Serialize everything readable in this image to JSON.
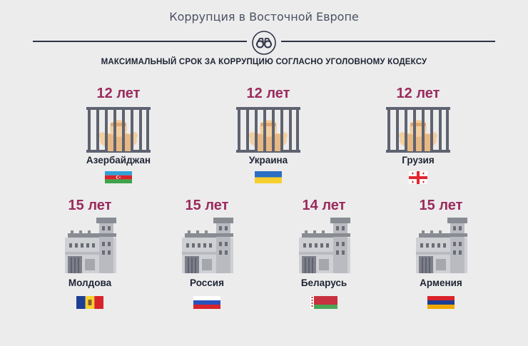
{
  "header": {
    "title": "Коррупция в Восточной Европе",
    "icon": "binoculars-icon"
  },
  "subtitle": "МАКСИМАЛЬНЫЙ СРОК ЗА КОРРУПЦИЮ СОГЛАСНО УГОЛОВНОМУ КОДЕКСУ",
  "row1": [
    {
      "years": "12 лет",
      "country": "Азербайджан",
      "image": "prisoner-behind-bars-icon",
      "flag": "azerbaijan-flag"
    },
    {
      "years": "12 лет",
      "country": "Украина",
      "image": "prisoner-behind-bars-icon",
      "flag": "ukraine-flag"
    },
    {
      "years": "12 лет",
      "country": "Грузия",
      "image": "prisoner-behind-bars-icon",
      "flag": "georgia-flag"
    }
  ],
  "row2": [
    {
      "years": "15 лет",
      "country": "Молдова",
      "image": "prison-building-icon",
      "flag": "moldova-flag"
    },
    {
      "years": "15 лет",
      "country": "Россия",
      "image": "prison-building-icon",
      "flag": "russia-flag"
    },
    {
      "years": "14 лет",
      "country": "Беларусь",
      "image": "prison-building-icon",
      "flag": "belarus-flag"
    },
    {
      "years": "15 лет",
      "country": "Армения",
      "image": "prison-building-icon",
      "flag": "armenia-flag"
    }
  ],
  "colors": {
    "background": "#ececed",
    "accent": "#9a2a5c",
    "text": "#1e2432"
  }
}
